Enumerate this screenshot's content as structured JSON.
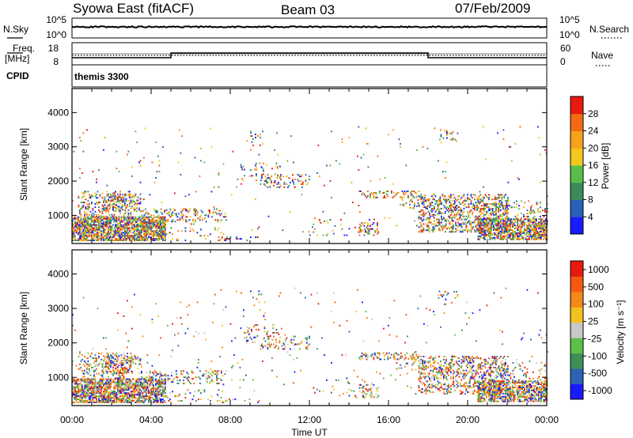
{
  "header": {
    "radar": "Syowa East (fitACF)",
    "beam": "Beam 03",
    "date": "07/Feb/2009"
  },
  "noise_panel": {
    "left_label": "N.Sky",
    "right_label": "N.Search",
    "left_ticks": [
      "10^5",
      "10^0"
    ],
    "right_ticks": [
      "10^5",
      "10^0"
    ]
  },
  "freq_panel": {
    "left_label_line1": "Freq.",
    "left_label_line2": "[MHz]",
    "left_ticks": [
      "18",
      "8"
    ],
    "right_label": "Nave",
    "right_ticks": [
      "60",
      "0"
    ]
  },
  "cpid": {
    "label": "CPID",
    "value": "themis 3300"
  },
  "time_axis": {
    "title": "Time UT",
    "ticks": [
      "00:00",
      "04:00",
      "08:00",
      "12:00",
      "16:00",
      "20:00",
      "00:00"
    ]
  },
  "chart_data": [
    {
      "type": "heatmap",
      "panel": "power",
      "xlabel": "Time UT",
      "ylabel": "Slant Range [km]",
      "x_range_hours": [
        0,
        24
      ],
      "ylim": [
        180,
        4700
      ],
      "yticks": [
        1000,
        2000,
        3000,
        4000
      ],
      "colorbar": {
        "label": "Power [dB]",
        "ticks": [
          "4",
          "8",
          "12",
          "16",
          "20",
          "24",
          "28"
        ],
        "colors": [
          "#1a1aff",
          "#2a5fb8",
          "#3b8a5a",
          "#58bf4a",
          "#f2c81e",
          "#f7a21c",
          "#f46b14",
          "#e81a10"
        ]
      },
      "dominant_regions": [
        {
          "t_start": 0.0,
          "t_end": 4.6,
          "range_start": 300,
          "range_end": 900,
          "level": "mixed_high"
        },
        {
          "t_start": 17.5,
          "t_end": 22.0,
          "range_start": 500,
          "range_end": 1600,
          "level": "mixed_mid"
        },
        {
          "t_start": 21.5,
          "t_end": 24.0,
          "range_start": 300,
          "range_end": 900,
          "level": "mixed_high"
        }
      ]
    },
    {
      "type": "heatmap",
      "panel": "velocity",
      "xlabel": "Time UT",
      "ylabel": "Slant Range [km]",
      "x_range_hours": [
        0,
        24
      ],
      "ylim": [
        180,
        4700
      ],
      "yticks": [
        1000,
        2000,
        3000,
        4000
      ],
      "colorbar": {
        "label": "Velocity [m s⁻¹]",
        "ticks": [
          "1000",
          "500",
          "100",
          "25",
          "-25",
          "-100",
          "-500",
          "-1000"
        ],
        "colors": [
          "#1a1aff",
          "#2e62b5",
          "#3d8f57",
          "#5cc046",
          "#c8c8c8",
          "#f4c21e",
          "#f4891a",
          "#f55a10",
          "#e81a10"
        ]
      }
    }
  ]
}
